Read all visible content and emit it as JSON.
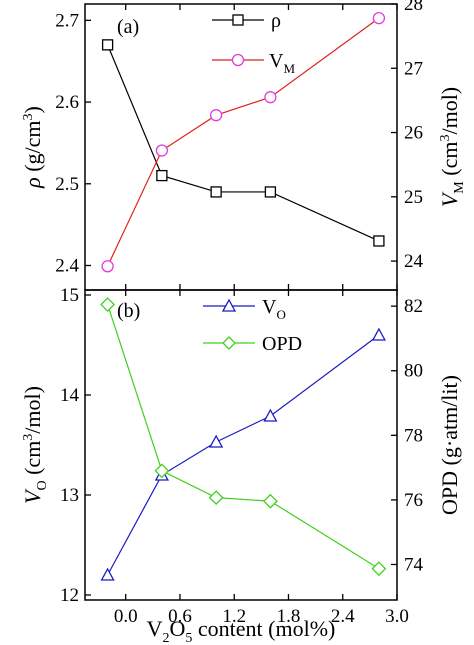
{
  "chart_data": [
    {
      "type": "line",
      "panel_label": "(a)",
      "x": [
        -0.2,
        0.4,
        1.0,
        1.6,
        2.8
      ],
      "xlim": [
        -0.45,
        3.0
      ],
      "grid": false,
      "legend_placement": "top-right",
      "y_left": {
        "label": "ρ (g/cm3)",
        "ylim": [
          2.37,
          2.72
        ],
        "ticks": [
          "2.4",
          "2.5",
          "2.6",
          "2.7"
        ],
        "series": {
          "name": "ρ",
          "color": "#000000",
          "marker": "square",
          "values": [
            2.67,
            2.51,
            2.49,
            2.49,
            2.43
          ]
        }
      },
      "y_right": {
        "label": "VM (cm3/mol)",
        "ylim": [
          23.55,
          28.0
        ],
        "ticks": [
          "24",
          "25",
          "26",
          "27",
          "28"
        ],
        "series": {
          "name": "VM",
          "color": "#e0201a",
          "marker": "circle",
          "marker_color": "#e23be0",
          "values": [
            23.92,
            25.72,
            26.27,
            26.55,
            27.78
          ]
        }
      }
    },
    {
      "type": "line",
      "panel_label": "(b)",
      "x": [
        -0.2,
        0.4,
        1.0,
        1.6,
        2.8
      ],
      "xlim": [
        -0.45,
        3.0
      ],
      "grid": false,
      "legend_placement": "top-center",
      "xlabel": "V2O5 content (mol%)",
      "x_ticks": [
        "0.0",
        "0.6",
        "1.2",
        "1.8",
        "2.4",
        "3.0"
      ],
      "y_left": {
        "label": "VO (cm3/mol)",
        "ylim": [
          11.95,
          15.05
        ],
        "ticks": [
          "12",
          "13",
          "14",
          "15"
        ],
        "series": {
          "name": "VO",
          "color": "#1a1ac6",
          "marker": "triangle",
          "values": [
            12.2,
            13.2,
            13.53,
            13.79,
            14.6
          ]
        }
      },
      "y_right": {
        "label": "OPD (g·atm/lit)",
        "ylim": [
          72.9,
          82.5
        ],
        "ticks": [
          "74",
          "76",
          "78",
          "80",
          "82"
        ],
        "series": {
          "name": "OPD",
          "color": "#3ed11e",
          "marker": "diamond",
          "values": [
            82.05,
            76.9,
            76.07,
            75.96,
            73.87
          ]
        }
      }
    }
  ],
  "text": {
    "tag_a": "(a)",
    "tag_b": "(b)",
    "legend_rho": "ρ",
    "legend_vm_main": "V",
    "legend_vm_sub": "M",
    "legend_vo_main": "V",
    "legend_vo_sub": "O",
    "legend_opd": "OPD",
    "ylabel_a_left_sym": "ρ",
    "ylabel_a_left_unit": " (g/cm",
    "ylabel_a_left_sup": "3",
    "ylabel_a_left_close": ")",
    "ylabel_a_right_sym": "V",
    "ylabel_a_right_sub": "M",
    "ylabel_a_right_unit": " (cm",
    "ylabel_a_right_sup": "3",
    "ylabel_a_right_close": "/mol)",
    "ylabel_b_left_sym": "V",
    "ylabel_b_left_sub": "O",
    "ylabel_b_left_unit": " (cm",
    "ylabel_b_left_sup": "3",
    "ylabel_b_left_close": "/mol)",
    "ylabel_b_right": "OPD (g·atm/lit)",
    "xlabel_v": "V",
    "xlabel_sub2": "2",
    "xlabel_o": "O",
    "xlabel_sub5": "5",
    "xlabel_rest": " content (mol%)"
  }
}
